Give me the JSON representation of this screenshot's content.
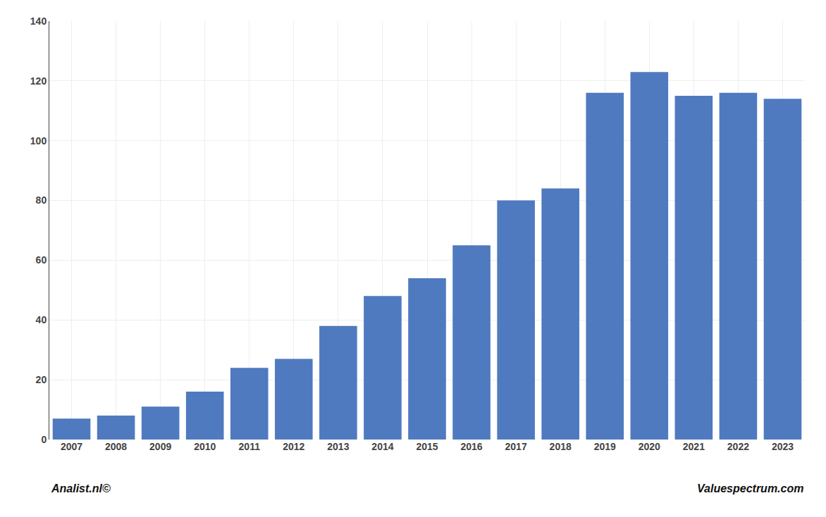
{
  "chart_data": {
    "type": "bar",
    "categories": [
      "2007",
      "2008",
      "2009",
      "2010",
      "2011",
      "2012",
      "2013",
      "2014",
      "2015",
      "2016",
      "2017",
      "2018",
      "2019",
      "2020",
      "2021",
      "2022",
      "2023"
    ],
    "values": [
      7,
      8,
      11,
      16,
      24,
      27,
      38,
      48,
      54,
      65,
      80,
      84,
      116,
      123,
      115,
      116,
      114
    ],
    "color": "#4f7abf",
    "ylim": [
      0,
      140
    ],
    "yticks": [
      0,
      20,
      40,
      60,
      80,
      100,
      120,
      140
    ],
    "grid": true,
    "annotations": [
      "Analist.nl©",
      "Valuespectrum.com"
    ]
  }
}
